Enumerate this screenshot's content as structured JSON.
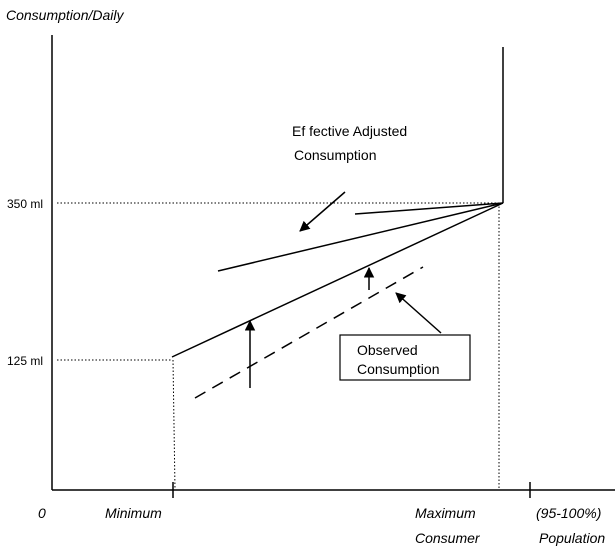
{
  "axes": {
    "y_label": "Consumption/Daily",
    "origin": "0"
  },
  "y_levels": [
    "350 ml",
    "125 ml"
  ],
  "x_labels": [
    {
      "line1": "Minimum"
    },
    {
      "line1": "Maximum",
      "line2": "Consumer"
    },
    {
      "line1": "(95-100%)",
      "line2": "Population"
    }
  ],
  "callouts": [
    {
      "line1": "Ef fective  Adjusted",
      "line2": "Consumption"
    },
    {
      "line1": "Observed",
      "line2": "Consumption"
    }
  ]
}
